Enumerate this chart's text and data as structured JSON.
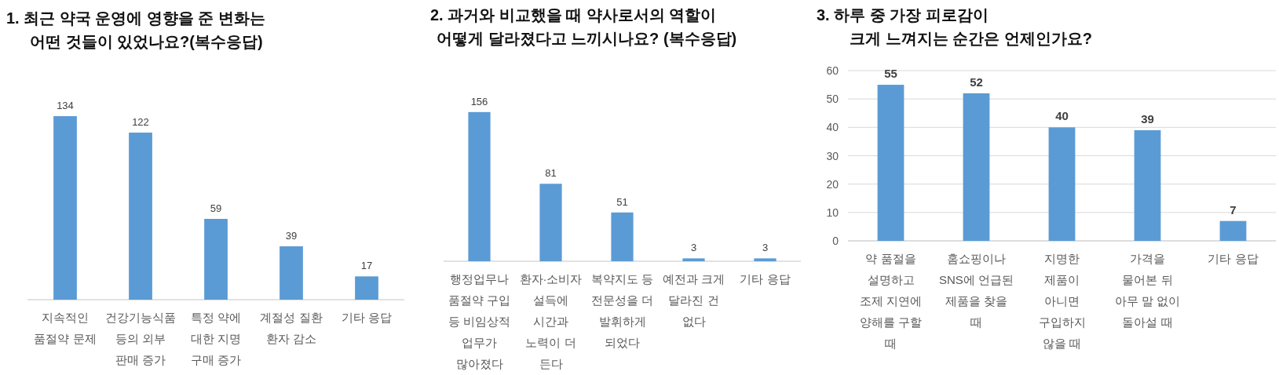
{
  "chart_data": [
    {
      "type": "bar",
      "title": "1. 최근 약국 운영에 영향을 준 변화는\n어떤 것들이 있었나요?(복수응답)",
      "categories": [
        "지속적인\n품절약 문제",
        "건강기능식품\n등의 외부\n판매 증가",
        "특정 약에\n대한 지명\n구매 증가",
        "계절성 질환\n환자 감소",
        "기타 응답"
      ],
      "values": [
        134,
        122,
        59,
        39,
        17
      ],
      "color": "#5b9bd5",
      "data_labels": true
    },
    {
      "type": "bar",
      "title": "2. 과거와 비교했을 때 약사로서의 역할이\n어떻게 달라졌다고 느끼시나요? (복수응답)",
      "categories": [
        "행정업무나\n품절약 구입\n등 비임상적\n업무가\n많아졌다",
        "환자·소비자\n설득에\n시간과\n노력이 더\n든다",
        "복약지도 등\n전문성을 더\n발휘하게\n되었다",
        "예전과 크게\n달라진 건\n없다",
        "기타 응답"
      ],
      "values": [
        156,
        81,
        51,
        3,
        3
      ],
      "color": "#5b9bd5",
      "data_labels": true
    },
    {
      "type": "bar",
      "title": "3. 하루 중 가장 피로감이\n크게 느껴지는 순간은 언제인가요?",
      "categories": [
        "약 품절을\n설명하고\n조제 지연에\n양해를 구할\n때",
        "홈쇼핑이나\nSNS에 언급된\n제품을 찾을\n때",
        "지명한\n제품이\n아니면\n구입하지\n않을 때",
        "가격을\n물어본 뒤\n아무 말 없이\n돌아설 때",
        "기타 응답"
      ],
      "values": [
        55,
        52,
        40,
        39,
        7
      ],
      "color": "#5b9bd5",
      "data_labels": true,
      "ylim": [
        0,
        60
      ],
      "yticks": [
        0,
        10,
        20,
        30,
        40,
        50,
        60
      ],
      "grid": "y"
    }
  ]
}
